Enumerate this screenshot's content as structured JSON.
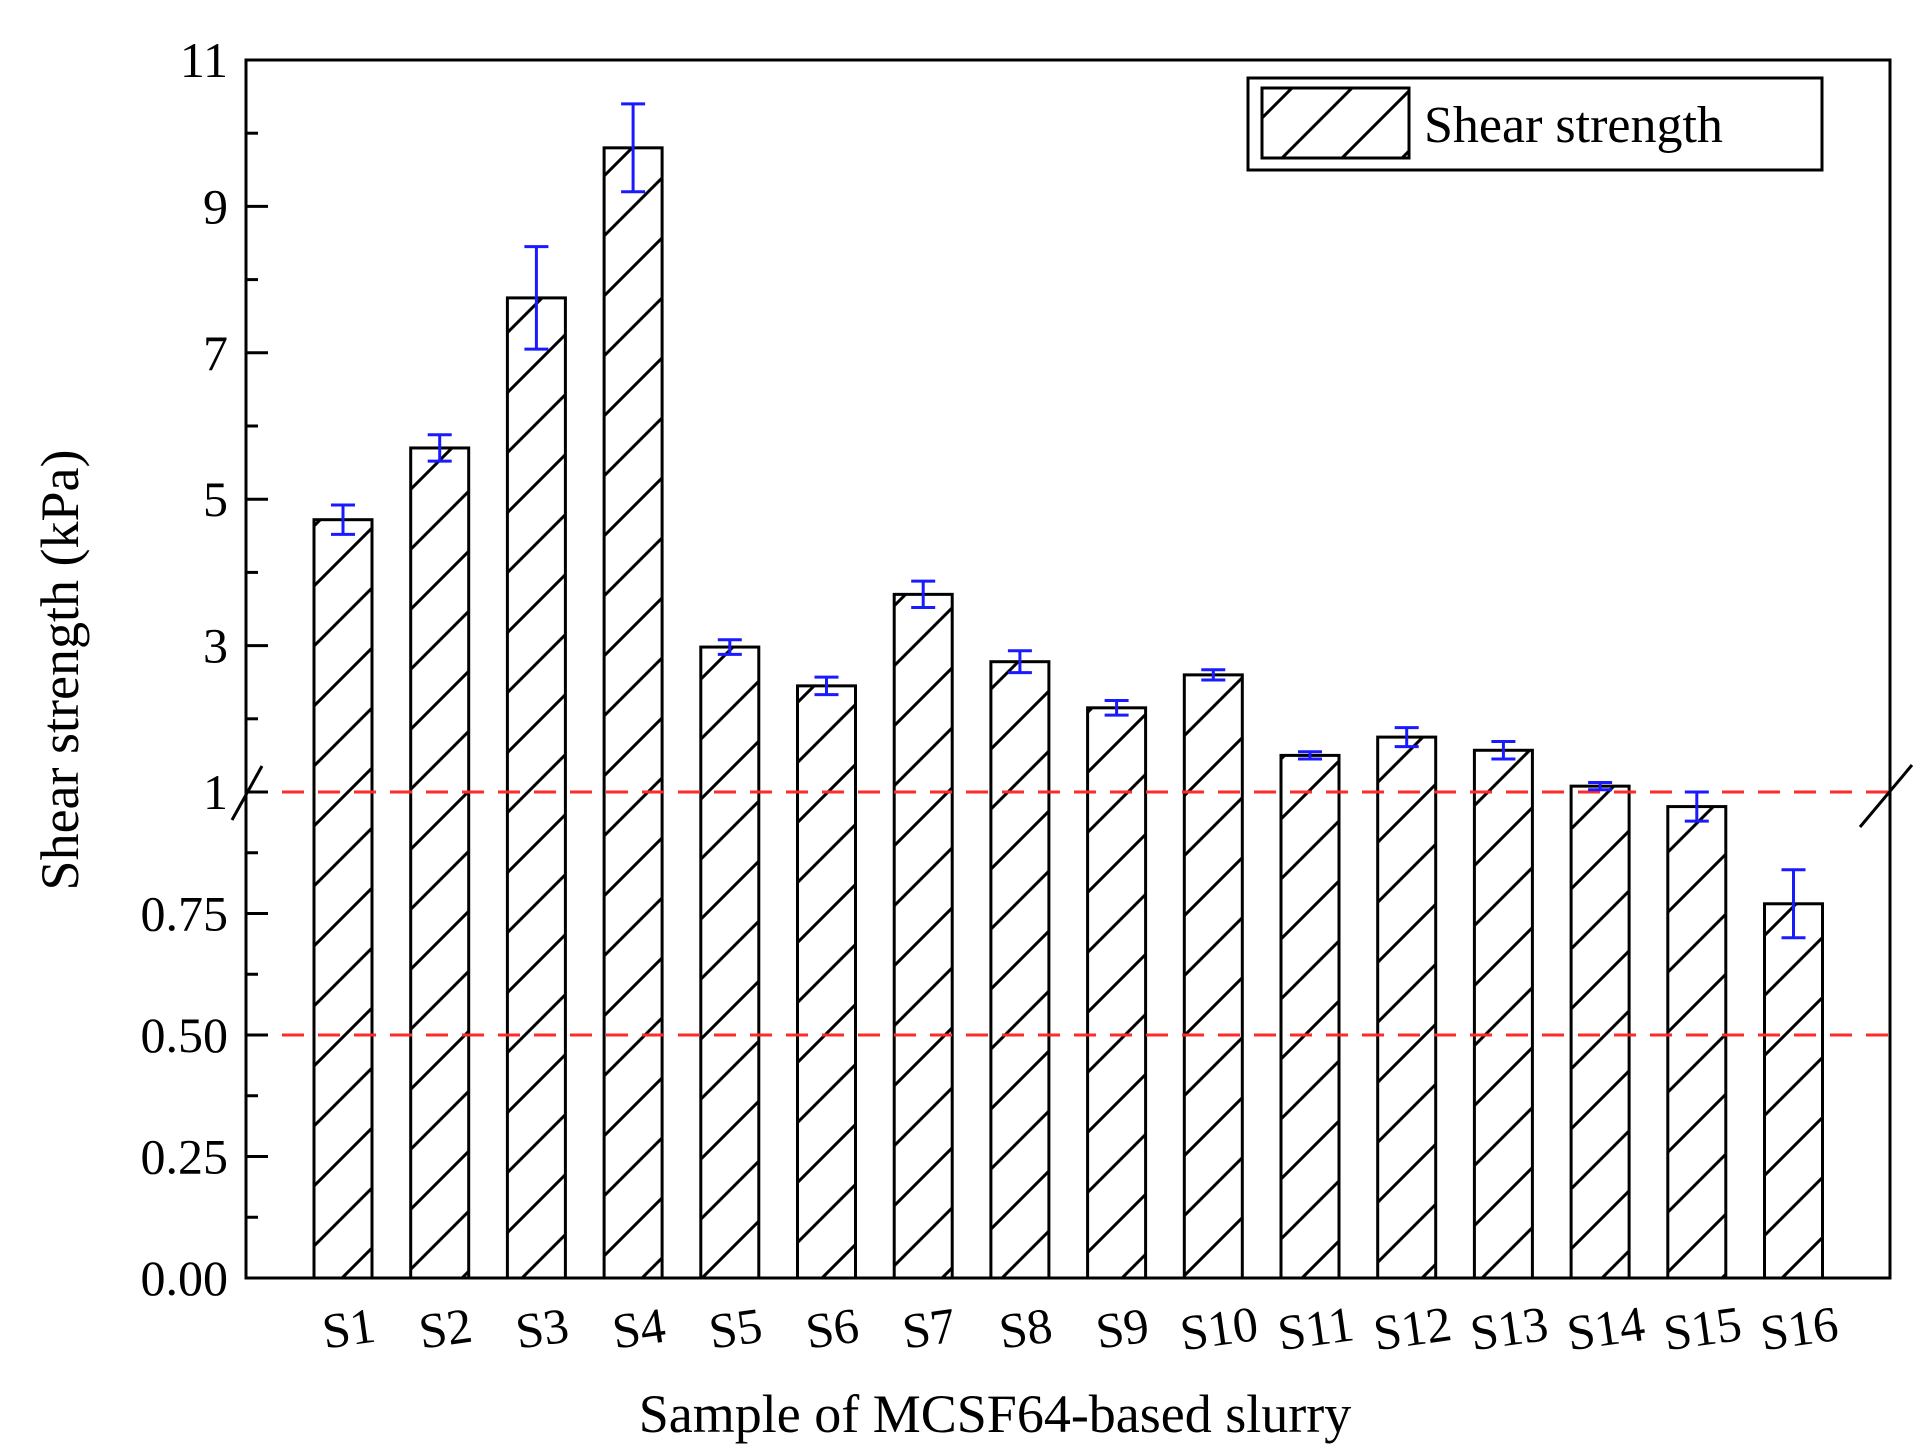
{
  "chart_data": {
    "type": "bar",
    "title": "",
    "xlabel": "Sample of MCSF64-based slurry",
    "ylabel": "Shear strength (kPa)",
    "legend": {
      "label": "Shear strength",
      "position": "top-right",
      "pattern": "diagonal-hatch"
    },
    "categories": [
      "S1",
      "S2",
      "S3",
      "S4",
      "S5",
      "S6",
      "S7",
      "S8",
      "S9",
      "S10",
      "S11",
      "S12",
      "S13",
      "S14",
      "S15",
      "S16"
    ],
    "values": [
      4.72,
      5.7,
      7.75,
      9.8,
      2.98,
      2.45,
      3.7,
      2.78,
      2.15,
      2.6,
      1.5,
      1.75,
      1.57,
      1.08,
      0.97,
      0.77
    ],
    "errors": [
      0.2,
      0.18,
      0.7,
      0.6,
      0.1,
      0.12,
      0.18,
      0.15,
      0.1,
      0.07,
      0.05,
      0.13,
      0.12,
      0.05,
      0.03,
      0.07
    ],
    "y_axis": {
      "broken": true,
      "break_at": 1,
      "lower_range": [
        0,
        1
      ],
      "upper_range": [
        1,
        11
      ],
      "ticks": [
        0,
        0.25,
        0.5,
        0.75,
        1,
        3,
        5,
        7,
        9,
        11
      ],
      "tick_labels": [
        "0.00",
        "0.25",
        "0.50",
        "0.75",
        "1",
        "3",
        "5",
        "7",
        "9",
        "11"
      ]
    },
    "reference_lines": [
      0.5,
      1
    ],
    "colors": {
      "bar_edge": "#000000",
      "error_bar": "#1a1aff",
      "reference_line": "#ff2a2a"
    }
  }
}
